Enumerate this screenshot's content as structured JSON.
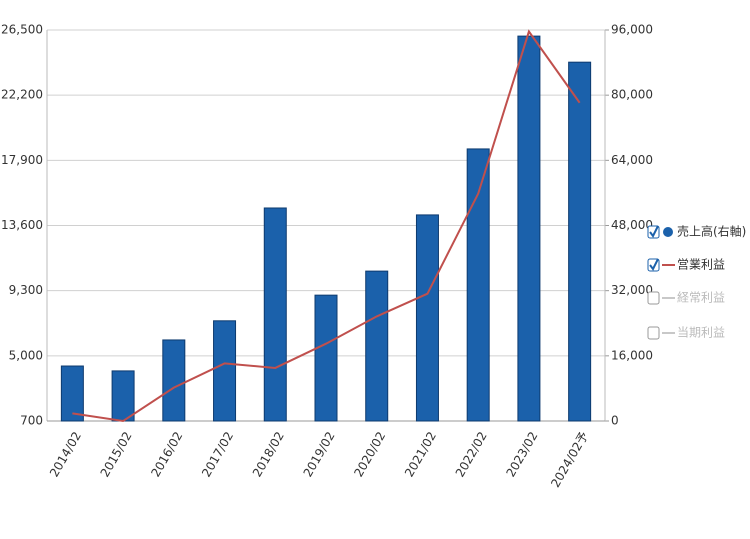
{
  "chart_data": {
    "type": "bar_line",
    "categories": [
      "2014/02",
      "2015/02",
      "2016/02",
      "2017/02",
      "2018/02",
      "2019/02",
      "2020/02",
      "2021/02",
      "2022/02",
      "2023/02",
      "2024/02予"
    ],
    "series": [
      {
        "name": "売上高(右軸)",
        "type": "bar",
        "axis": "y2",
        "color": "#1b61ab",
        "checked": true,
        "values": [
          13500,
          12300,
          19900,
          24600,
          52300,
          30900,
          36800,
          50600,
          66800,
          94500,
          88100
        ]
      },
      {
        "name": "営業利益",
        "type": "line",
        "axis": "y",
        "color": "#c0504d",
        "checked": true,
        "values": [
          1200,
          700,
          2900,
          4500,
          4200,
          5800,
          7600,
          9100,
          15700,
          26400,
          21700
        ]
      },
      {
        "name": "経常利益",
        "type": "line",
        "color": "#c8c8c8",
        "checked": false
      },
      {
        "name": "当期利益",
        "type": "line",
        "color": "#c8c8c8",
        "checked": false
      }
    ],
    "ylim": [
      700,
      26500
    ],
    "yticks": [
      700,
      {
        "value": 5000,
        "label": "5,000"
      },
      {
        "value": 9300,
        "label": "9,300"
      },
      {
        "value": 13600,
        "label": "13,600"
      },
      {
        "value": 17900,
        "label": "17,900"
      },
      {
        "value": 22200,
        "label": "22,200"
      },
      {
        "value": 26500,
        "label": "26,500"
      }
    ],
    "y2lim": [
      0,
      96000
    ],
    "y2ticks": [
      0,
      {
        "value": 16000,
        "label": "16,000"
      },
      {
        "value": 32000,
        "label": "32,000"
      },
      {
        "value": 48000,
        "label": "48,000"
      },
      {
        "value": 64000,
        "label": "64,000"
      },
      {
        "value": 80000,
        "label": "80,000"
      },
      {
        "value": 96000,
        "label": "96,000"
      }
    ],
    "grid": true,
    "legend": "right"
  }
}
